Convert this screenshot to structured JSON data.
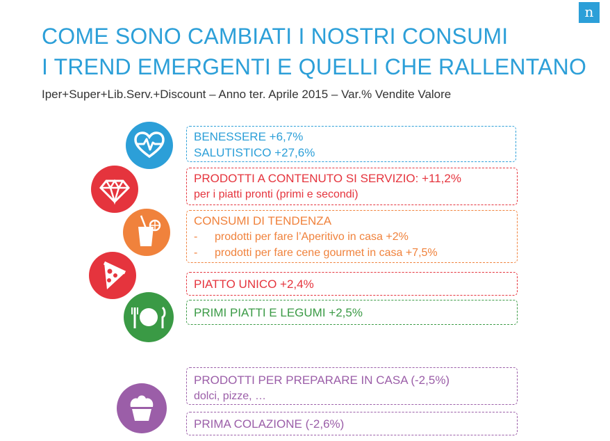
{
  "logo": "n",
  "title_line1": "COME SONO CAMBIATI I NOSTRI CONSUMI",
  "title_line2": "I TREND EMERGENTI E QUELLI CHE RALLENTANO",
  "subtitle": "Iper+Super+Lib.Serv.+Discount – Anno ter. Aprile 2015 – Var.% Vendite Valore",
  "colors": {
    "blue": "#2c9fd8",
    "red": "#e5343d",
    "orange": "#f0823c",
    "green": "#3a9a45",
    "purple": "#9b5ea8"
  },
  "items": {
    "benessere": {
      "line1": "BENESSERE +6,7%",
      "line2": "SALUTISTICO +27,6%",
      "icon": "heart-pulse-icon"
    },
    "servizio": {
      "line1": "PRODOTTI A CONTENUTO SI SERVIZIO: +11,2%",
      "line2": "per i piatti pronti (primi e secondi)",
      "icon": "diamond-icon"
    },
    "tendenza": {
      "line1": "CONSUMI DI TENDENZA",
      "dash": "-",
      "line2": "prodotti per fare l’Aperitivo in casa +2%",
      "line3": "prodotti per fare cene gourmet in casa +7,5%",
      "icon": "drink-icon"
    },
    "piatto_unico": {
      "line1": "PIATTO UNICO +2,4%",
      "icon": "pizza-icon"
    },
    "primi": {
      "line1": "PRIMI PIATTI E LEGUMI +2,5%",
      "icon": "plate-cutlery-icon"
    },
    "casa": {
      "line1": "PRODOTTI PER PREPARARE IN CASA (-2,5%)",
      "line2": "dolci, pizze, …",
      "icon": "cupcake-icon"
    },
    "colazione": {
      "line1": "PRIMA COLAZIONE (-2,6%)"
    }
  }
}
